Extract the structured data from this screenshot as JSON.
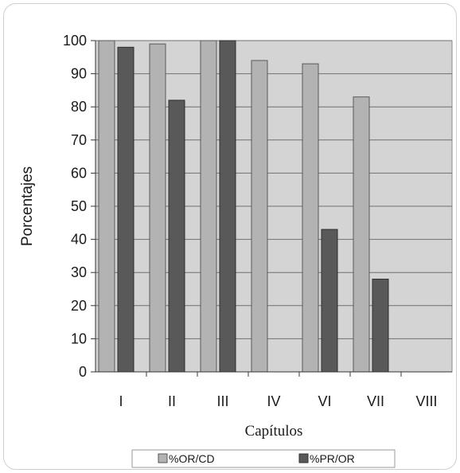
{
  "chart_data": {
    "type": "bar",
    "categories": [
      "I",
      "II",
      "III",
      "IV",
      "VI",
      "VII",
      "VIII"
    ],
    "series": [
      {
        "name": "%OR/CD",
        "values": [
          100,
          99,
          100,
          94,
          93,
          83,
          null
        ],
        "color": "#b3b3b3"
      },
      {
        "name": "%PR/OR",
        "values": [
          98,
          82,
          100,
          null,
          43,
          28,
          null
        ],
        "color": "#595959"
      }
    ],
    "title": "",
    "xlabel": "Capítulos",
    "ylabel": "Porcentajes",
    "ylim": [
      0,
      100
    ],
    "yticks": [
      0,
      10,
      20,
      30,
      40,
      50,
      60,
      70,
      80,
      90,
      100
    ],
    "grid": true,
    "legend": "bottom"
  }
}
